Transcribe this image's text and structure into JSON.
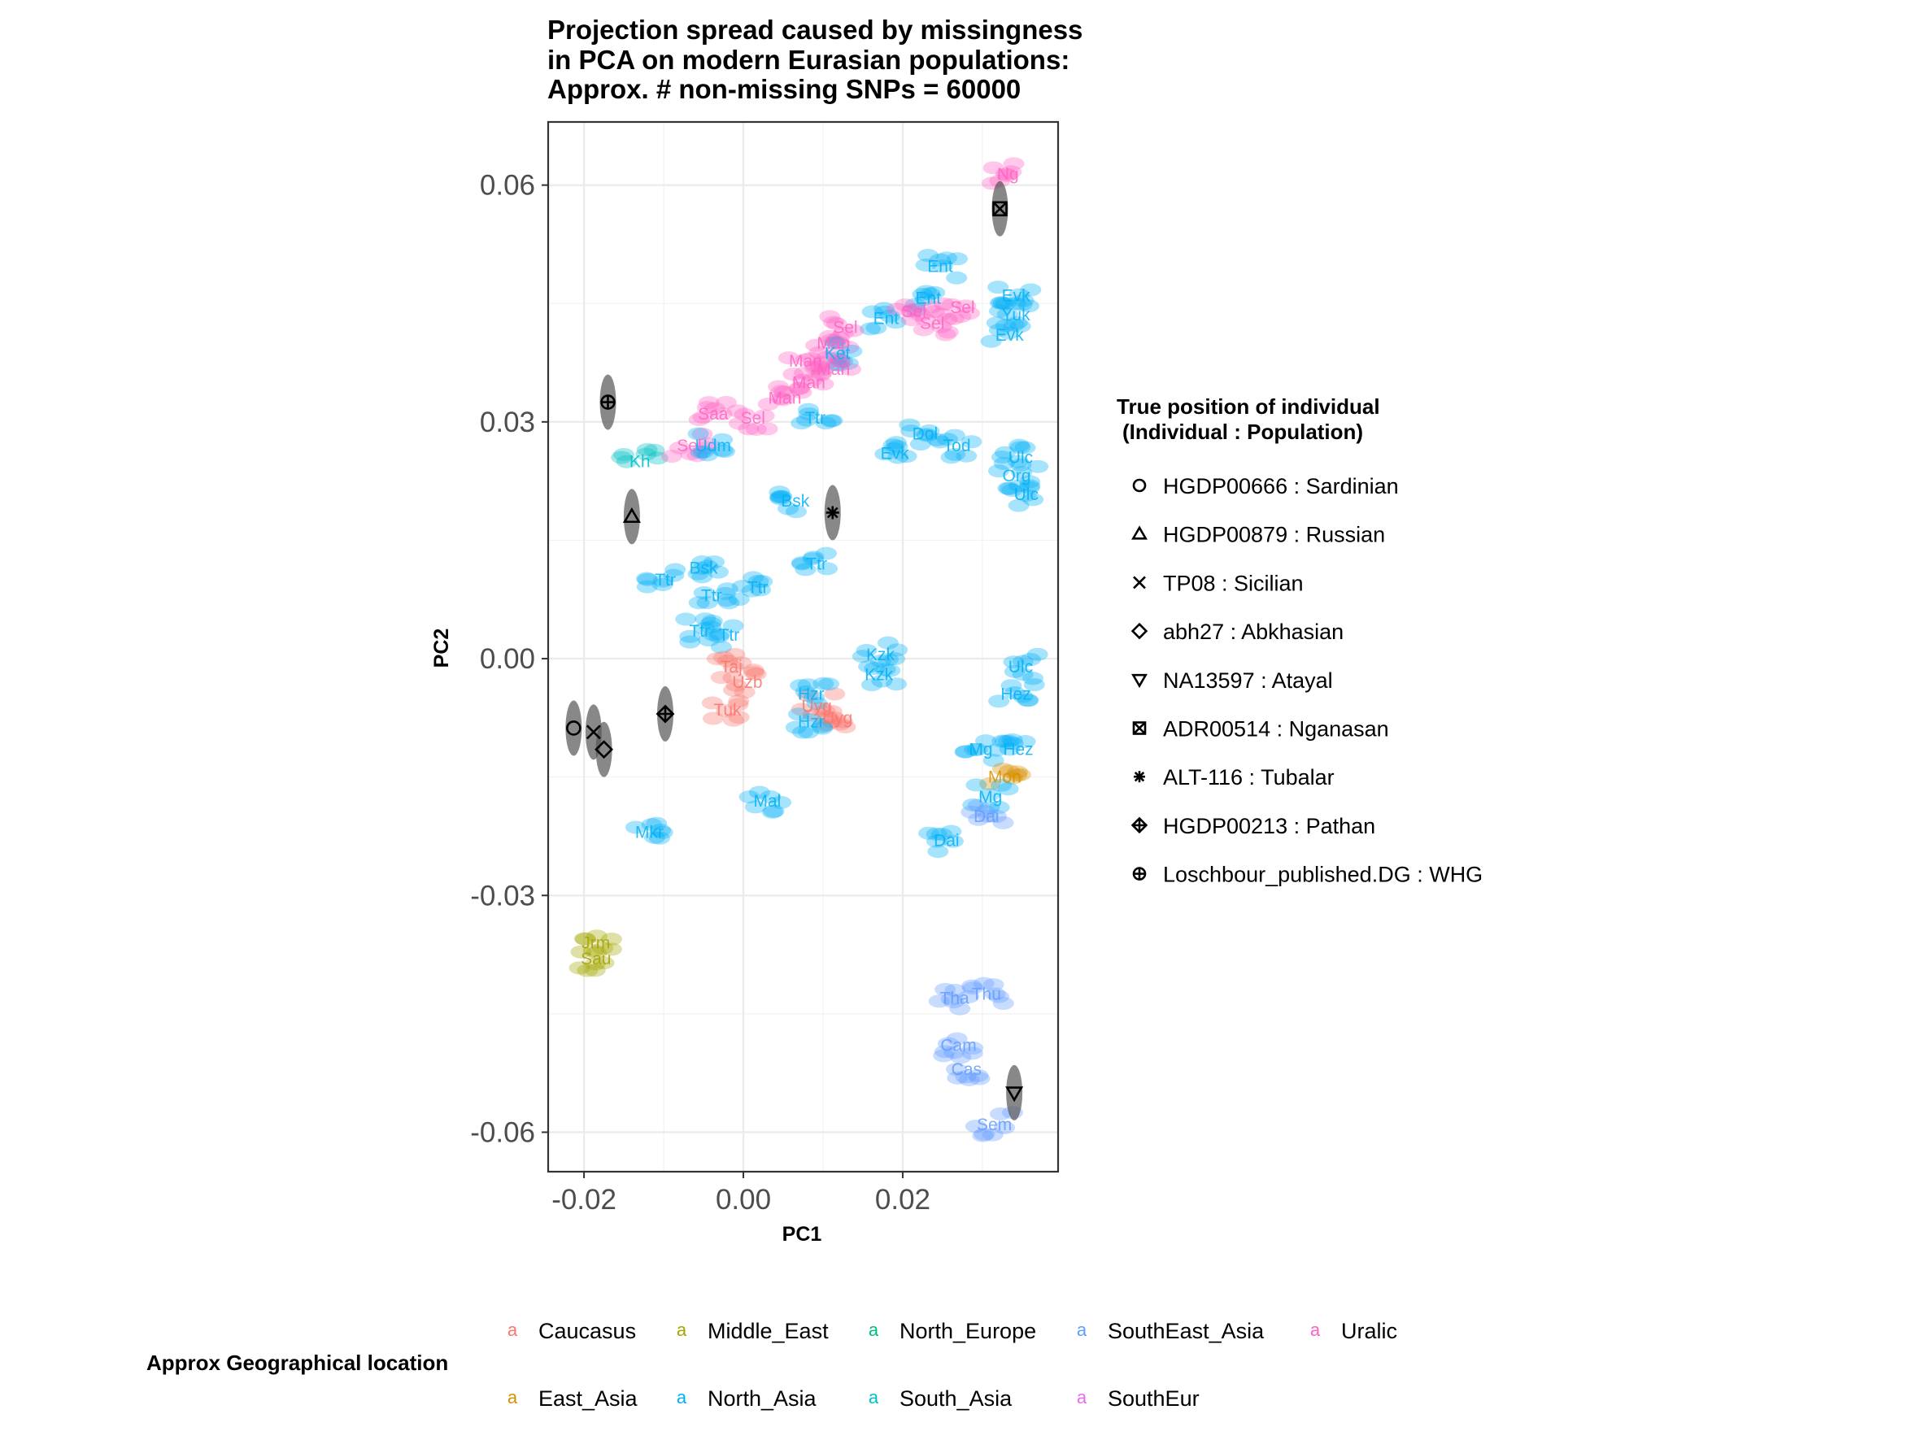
{
  "chart_data": {
    "type": "scatter",
    "title": [
      "Projection spread caused by missingness",
      "in PCA on modern Eurasian populations:",
      "Approx. # non-missing SNPs = 60000"
    ],
    "xlabel": "PC1",
    "ylabel": "PC2",
    "xlim": [
      -0.0245,
      0.0395
    ],
    "ylim": [
      -0.065,
      0.068
    ],
    "x_ticks": [
      -0.02,
      0.0,
      0.02
    ],
    "x_tick_labels": [
      "-0.02",
      "0.00",
      "0.02"
    ],
    "y_ticks": [
      -0.06,
      -0.03,
      0.0,
      0.03,
      0.06
    ],
    "y_tick_labels": [
      "-0.06",
      "-0.03",
      "0.00",
      "0.03",
      "0.06"
    ],
    "grid": true,
    "theme": "bw",
    "region_legend": {
      "title": "Approx Geographical location",
      "position": "bottom",
      "entries": [
        {
          "name": "Caucasus",
          "color": "#F8766D"
        },
        {
          "name": "Middle_East",
          "color": "#A3A500"
        },
        {
          "name": "North_Europe",
          "color": "#00BF7D"
        },
        {
          "name": "SouthEast_Asia",
          "color": "#619CFF"
        },
        {
          "name": "Uralic",
          "color": "#FF61C3"
        },
        {
          "name": "East_Asia",
          "color": "#D89000"
        },
        {
          "name": "North_Asia",
          "color": "#00B0F6"
        },
        {
          "name": "South_Asia",
          "color": "#00BFC4"
        },
        {
          "name": "SouthEur",
          "color": "#E76BF3"
        }
      ]
    },
    "individual_legend": {
      "title": [
        "True position of individual",
        "(Individual : Population)"
      ],
      "position": "right",
      "entries": [
        {
          "label": "HGDP00666 : Sardinian",
          "shape": "circle"
        },
        {
          "label": "HGDP00879 : Russian",
          "shape": "triangle"
        },
        {
          "label": "TP08 : Sicilian",
          "shape": "cross"
        },
        {
          "label": "abh27 : Abkhasian",
          "shape": "diamond"
        },
        {
          "label": "NA13597 : Atayal",
          "shape": "triangle-down"
        },
        {
          "label": "ADR00514 : Nganasan",
          "shape": "square-x"
        },
        {
          "label": "ALT-116 : Tubalar",
          "shape": "asterisk"
        },
        {
          "label": "HGDP00213 : Pathan",
          "shape": "diamond-plus"
        },
        {
          "label": "Loschbour_published.DG : WHG",
          "shape": "circle-plus"
        }
      ]
    },
    "individuals": [
      {
        "name": "HGDP00666",
        "x": -0.0213,
        "y": -0.0088,
        "shape": "circle"
      },
      {
        "name": "HGDP00879",
        "x": -0.014,
        "y": 0.018,
        "shape": "triangle"
      },
      {
        "name": "TP08",
        "x": -0.0188,
        "y": -0.0093,
        "shape": "cross"
      },
      {
        "name": "abh27",
        "x": -0.0175,
        "y": -0.0115,
        "shape": "diamond"
      },
      {
        "name": "NA13597",
        "x": 0.034,
        "y": -0.055,
        "shape": "triangle-down"
      },
      {
        "name": "ADR00514",
        "x": 0.0322,
        "y": 0.057,
        "shape": "square-x"
      },
      {
        "name": "ALT-116",
        "x": 0.0112,
        "y": 0.0185,
        "shape": "asterisk"
      },
      {
        "name": "HGDP00213",
        "x": -0.0098,
        "y": -0.007,
        "shape": "diamond-plus"
      },
      {
        "name": "Loschbour_published.DG",
        "x": -0.017,
        "y": 0.0325,
        "shape": "circle-plus"
      }
    ],
    "population_labels": [
      {
        "text": "Ng",
        "x": 0.0332,
        "y": 0.0614,
        "region": "Uralic"
      },
      {
        "text": "Ent",
        "x": 0.0247,
        "y": 0.0497,
        "region": "North_Asia"
      },
      {
        "text": "Ent",
        "x": 0.0232,
        "y": 0.0457,
        "region": "North_Asia"
      },
      {
        "text": "Ent",
        "x": 0.0179,
        "y": 0.0431,
        "region": "North_Asia"
      },
      {
        "text": "Sel",
        "x": 0.0214,
        "y": 0.044,
        "region": "Uralic"
      },
      {
        "text": "Sel",
        "x": 0.0237,
        "y": 0.0425,
        "region": "Uralic"
      },
      {
        "text": "Sel",
        "x": 0.0275,
        "y": 0.0445,
        "region": "Uralic"
      },
      {
        "text": "Evk",
        "x": 0.0342,
        "y": 0.046,
        "region": "North_Asia"
      },
      {
        "text": "Yuk",
        "x": 0.0342,
        "y": 0.0436,
        "region": "North_Asia"
      },
      {
        "text": "Evk",
        "x": 0.0334,
        "y": 0.041,
        "region": "North_Asia"
      },
      {
        "text": "Sel",
        "x": 0.0128,
        "y": 0.042,
        "region": "Uralic"
      },
      {
        "text": "Man",
        "x": 0.0113,
        "y": 0.04,
        "region": "Uralic"
      },
      {
        "text": "Ket",
        "x": 0.0118,
        "y": 0.0387,
        "region": "North_Asia"
      },
      {
        "text": "Man",
        "x": 0.0078,
        "y": 0.0377,
        "region": "Uralic"
      },
      {
        "text": "Man",
        "x": 0.0113,
        "y": 0.0367,
        "region": "Uralic"
      },
      {
        "text": "Man",
        "x": 0.0082,
        "y": 0.035,
        "region": "Uralic"
      },
      {
        "text": "Man",
        "x": 0.0052,
        "y": 0.033,
        "region": "Uralic"
      },
      {
        "text": "Saa",
        "x": -0.0038,
        "y": 0.031,
        "region": "Uralic"
      },
      {
        "text": "Sel",
        "x": 0.0012,
        "y": 0.0305,
        "region": "Uralic"
      },
      {
        "text": "Ttr",
        "x": 0.009,
        "y": 0.0305,
        "region": "North_Asia"
      },
      {
        "text": "Dol",
        "x": 0.0228,
        "y": 0.0285,
        "region": "North_Asia"
      },
      {
        "text": "Tod",
        "x": 0.0268,
        "y": 0.027,
        "region": "North_Asia"
      },
      {
        "text": "Evk",
        "x": 0.019,
        "y": 0.026,
        "region": "North_Asia"
      },
      {
        "text": "Ulc",
        "x": 0.0348,
        "y": 0.0255,
        "region": "North_Asia"
      },
      {
        "text": "Org",
        "x": 0.0343,
        "y": 0.0232,
        "region": "North_Asia"
      },
      {
        "text": "Ulc",
        "x": 0.0355,
        "y": 0.0208,
        "region": "North_Asia"
      },
      {
        "text": "Bsk",
        "x": 0.0065,
        "y": 0.02,
        "region": "North_Asia"
      },
      {
        "text": "Bsk",
        "x": -0.005,
        "y": 0.0115,
        "region": "North_Asia"
      },
      {
        "text": "Ttr",
        "x": 0.0092,
        "y": 0.012,
        "region": "North_Asia"
      },
      {
        "text": "Ttr",
        "x": -0.0098,
        "y": 0.01,
        "region": "North_Asia"
      },
      {
        "text": "Ttr",
        "x": -0.004,
        "y": 0.008,
        "region": "North_Asia"
      },
      {
        "text": "Ttr",
        "x": 0.0018,
        "y": 0.009,
        "region": "North_Asia"
      },
      {
        "text": "Ttr",
        "x": -0.0055,
        "y": 0.0035,
        "region": "North_Asia"
      },
      {
        "text": "Ttr",
        "x": -0.0018,
        "y": 0.003,
        "region": "North_Asia"
      },
      {
        "text": "Kzk",
        "x": 0.0172,
        "y": 0.0005,
        "region": "North_Asia"
      },
      {
        "text": "Kzk",
        "x": 0.017,
        "y": -0.002,
        "region": "North_Asia"
      },
      {
        "text": "Ulc",
        "x": 0.0348,
        "y": -0.001,
        "region": "North_Asia"
      },
      {
        "text": "Hez",
        "x": 0.0342,
        "y": -0.0045,
        "region": "North_Asia"
      },
      {
        "text": "Hez",
        "x": 0.0345,
        "y": -0.0115,
        "region": "North_Asia"
      },
      {
        "text": "Mg",
        "x": 0.0298,
        "y": -0.0115,
        "region": "North_Asia"
      },
      {
        "text": "Uyg",
        "x": 0.0118,
        "y": -0.0075,
        "region": "Caucasus"
      },
      {
        "text": "Uyg",
        "x": 0.0092,
        "y": -0.006,
        "region": "Caucasus"
      },
      {
        "text": "Tuk",
        "x": -0.002,
        "y": -0.0065,
        "region": "Caucasus"
      },
      {
        "text": "Uzb",
        "x": 0.0005,
        "y": -0.003,
        "region": "Caucasus"
      },
      {
        "text": "Taj",
        "x": -0.0015,
        "y": -0.001,
        "region": "Caucasus"
      },
      {
        "text": "Hzr",
        "x": 0.0085,
        "y": -0.0045,
        "region": "North_Asia"
      },
      {
        "text": "Hzr",
        "x": 0.0085,
        "y": -0.008,
        "region": "North_Asia"
      },
      {
        "text": "Mal",
        "x": 0.003,
        "y": -0.018,
        "region": "North_Asia"
      },
      {
        "text": "Mkr",
        "x": -0.0118,
        "y": -0.022,
        "region": "North_Asia"
      },
      {
        "text": "Mon",
        "x": 0.0328,
        "y": -0.015,
        "region": "East_Asia"
      },
      {
        "text": "Mg",
        "x": 0.031,
        "y": -0.0175,
        "region": "North_Asia"
      },
      {
        "text": "Dai",
        "x": 0.0305,
        "y": -0.02,
        "region": "SouthEast_Asia"
      },
      {
        "text": "Dai",
        "x": 0.0255,
        "y": -0.023,
        "region": "North_Asia"
      },
      {
        "text": "Sau",
        "x": -0.0185,
        "y": -0.038,
        "region": "Middle_East"
      },
      {
        "text": "Jrm",
        "x": -0.0185,
        "y": -0.036,
        "region": "Middle_East"
      },
      {
        "text": "Tha",
        "x": 0.0265,
        "y": -0.043,
        "region": "SouthEast_Asia"
      },
      {
        "text": "Thu",
        "x": 0.0305,
        "y": -0.0425,
        "region": "SouthEast_Asia"
      },
      {
        "text": "Cam",
        "x": 0.027,
        "y": -0.049,
        "region": "SouthEast_Asia"
      },
      {
        "text": "Cas",
        "x": 0.028,
        "y": -0.052,
        "region": "SouthEast_Asia"
      },
      {
        "text": "Sem",
        "x": 0.0315,
        "y": -0.059,
        "region": "SouthEast_Asia"
      },
      {
        "text": "Kh",
        "x": -0.013,
        "y": 0.025,
        "region": "South_Asia"
      },
      {
        "text": "Sel",
        "x": -0.0068,
        "y": 0.027,
        "region": "Uralic"
      },
      {
        "text": "Udm",
        "x": -0.0038,
        "y": 0.027,
        "region": "North_Asia"
      }
    ]
  }
}
